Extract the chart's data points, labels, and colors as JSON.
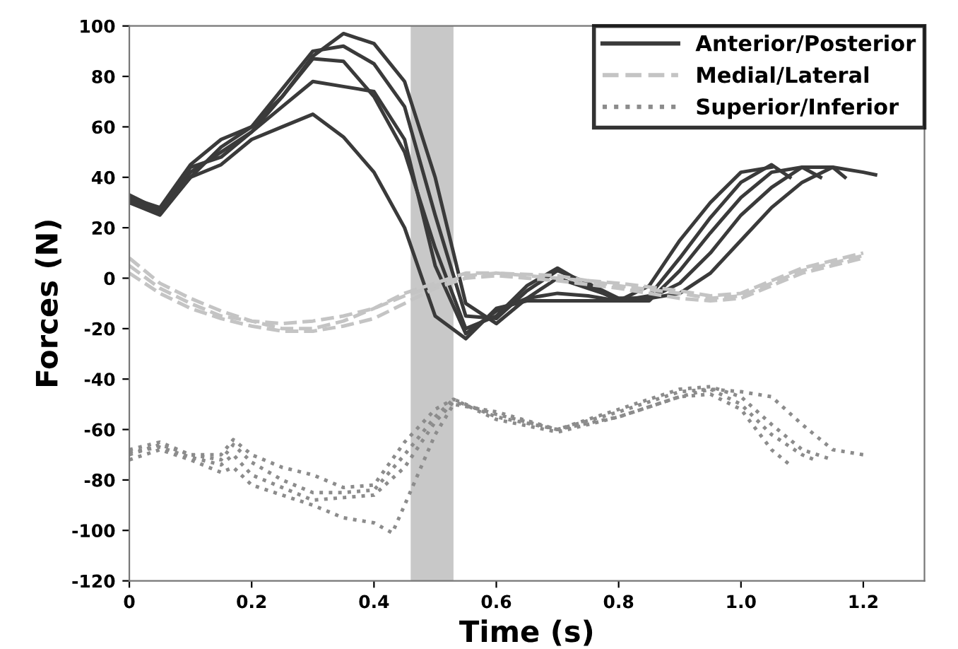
{
  "chart_data": {
    "type": "line",
    "xlabel": "Time (s)",
    "ylabel": "Forces (N)",
    "xlim": [
      0,
      1.3
    ],
    "xticks": [
      0,
      0.2,
      0.4,
      0.6,
      0.8,
      {
        "value": 1.0,
        "label": "1.0"
      },
      1.2
    ],
    "ylim": [
      -120,
      100
    ],
    "yticks": [
      -120,
      -100,
      -80,
      -60,
      -40,
      -20,
      0,
      20,
      40,
      60,
      80,
      100
    ],
    "grid": false,
    "legend": "top right",
    "marker": "none",
    "bands": [
      {
        "axis": "x",
        "from": 0.46,
        "to": 0.53,
        "color": "#c8c8c8"
      }
    ],
    "series": [
      {
        "name": "Anterior/Posterior",
        "color": "#3a3a3a",
        "line_style": "solid",
        "x": [
          0,
          0.05,
          0.1,
          0.15,
          0.2,
          0.25,
          0.3,
          0.35,
          0.4,
          0.45,
          0.5,
          0.55,
          0.6,
          0.65,
          0.7,
          0.75,
          0.8,
          0.85,
          0.9,
          0.95,
          1.0,
          1.05,
          1.1,
          1.15,
          1.2,
          1.22
        ],
        "values": [
          33,
          27,
          42,
          50,
          58,
          72,
          88,
          97,
          93,
          78,
          40,
          -10,
          -18,
          -8,
          0,
          -4,
          -8,
          -8,
          -6,
          2,
          15,
          28,
          38,
          44,
          42,
          41
        ]
      },
      {
        "color": "#3a3a3a",
        "line_style": "solid",
        "x": [
          0,
          0.05,
          0.1,
          0.15,
          0.2,
          0.25,
          0.3,
          0.35,
          0.4,
          0.45,
          0.5,
          0.55,
          0.6,
          0.65,
          0.7,
          0.75,
          0.8,
          0.85,
          0.9,
          0.95,
          1.0,
          1.05,
          1.1,
          1.15,
          1.17
        ],
        "values": [
          32,
          28,
          45,
          55,
          60,
          75,
          90,
          92,
          85,
          68,
          25,
          -15,
          -16,
          -5,
          3,
          -2,
          -8,
          -8,
          -2,
          10,
          25,
          36,
          44,
          44,
          40
        ]
      },
      {
        "color": "#3a3a3a",
        "line_style": "solid",
        "x": [
          0,
          0.05,
          0.1,
          0.15,
          0.2,
          0.25,
          0.3,
          0.35,
          0.4,
          0.45,
          0.5,
          0.55,
          0.6,
          0.65,
          0.7,
          0.75,
          0.8,
          0.85,
          0.9,
          0.95,
          1.0,
          1.05,
          1.1,
          1.13
        ],
        "values": [
          30,
          25,
          40,
          52,
          60,
          72,
          87,
          86,
          72,
          50,
          12,
          -20,
          -15,
          -3,
          4,
          -3,
          -9,
          -9,
          3,
          18,
          32,
          42,
          44,
          40
        ]
      },
      {
        "color": "#3a3a3a",
        "line_style": "solid",
        "x": [
          0,
          0.05,
          0.1,
          0.15,
          0.2,
          0.25,
          0.3,
          0.35,
          0.4,
          0.45,
          0.5,
          0.55,
          0.6,
          0.65,
          0.7,
          0.75,
          0.8,
          0.85,
          0.9,
          0.95,
          1.0,
          1.05,
          1.08
        ],
        "values": [
          31,
          27,
          44,
          48,
          58,
          68,
          78,
          76,
          74,
          55,
          5,
          -22,
          -13,
          -8,
          -6,
          -7,
          -9,
          -7,
          8,
          24,
          38,
          45,
          40
        ]
      },
      {
        "color": "#3a3a3a",
        "line_style": "solid",
        "x": [
          0,
          0.05,
          0.1,
          0.15,
          0.2,
          0.25,
          0.3,
          0.35,
          0.4,
          0.45,
          0.5,
          0.55,
          0.6,
          0.65,
          0.7,
          0.75,
          0.8,
          0.85,
          0.9,
          0.95,
          1.0,
          1.05
        ],
        "values": [
          30,
          26,
          40,
          45,
          55,
          60,
          65,
          56,
          42,
          20,
          -15,
          -24,
          -12,
          -9,
          -9,
          -9,
          -9,
          -3,
          15,
          30,
          42,
          44
        ]
      },
      {
        "name": "Medial/Lateral",
        "color": "#c4c4c4",
        "line_style": "dashed",
        "x": [
          0,
          0.05,
          0.1,
          0.15,
          0.2,
          0.25,
          0.3,
          0.35,
          0.4,
          0.45,
          0.5,
          0.55,
          0.6,
          0.7,
          0.8,
          0.9,
          0.95,
          1.0,
          1.1,
          1.2
        ],
        "values": [
          8,
          -2,
          -8,
          -13,
          -17,
          -20,
          -20,
          -17,
          -12,
          -6,
          -2,
          2,
          2,
          0,
          -2,
          -5,
          -7,
          -6,
          4,
          10
        ]
      },
      {
        "color": "#c4c4c4",
        "line_style": "dashed",
        "x": [
          0,
          0.05,
          0.1,
          0.15,
          0.2,
          0.25,
          0.3,
          0.35,
          0.4,
          0.45,
          0.5,
          0.55,
          0.6,
          0.7,
          0.8,
          0.9,
          0.95,
          1.0,
          1.1,
          1.2
        ],
        "values": [
          2,
          -6,
          -12,
          -16,
          -19,
          -21,
          -21,
          -19,
          -16,
          -10,
          -4,
          0,
          1,
          -1,
          -4,
          -8,
          -9,
          -8,
          2,
          8
        ]
      },
      {
        "color": "#c4c4c4",
        "line_style": "dashed",
        "x": [
          0,
          0.05,
          0.1,
          0.15,
          0.2,
          0.25,
          0.3,
          0.35,
          0.4,
          0.45,
          0.5,
          0.55,
          0.6,
          0.7,
          0.8,
          0.9,
          0.95,
          1.0,
          1.1,
          1.2
        ],
        "values": [
          5,
          -4,
          -10,
          -15,
          -17,
          -18,
          -17,
          -15,
          -12,
          -7,
          -3,
          1,
          2,
          1,
          -3,
          -6,
          -8,
          -7,
          3,
          9
        ]
      },
      {
        "name": "Superior/Inferior",
        "color": "#8c8c8c",
        "line_style": "dotted",
        "x": [
          0,
          0.05,
          0.1,
          0.15,
          0.17,
          0.2,
          0.25,
          0.3,
          0.35,
          0.4,
          0.45,
          0.5,
          0.53,
          0.6,
          0.7,
          0.8,
          0.9,
          0.95,
          1.0,
          1.05,
          1.1,
          1.15,
          1.2
        ],
        "values": [
          -68,
          -65,
          -70,
          -70,
          -64,
          -70,
          -75,
          -78,
          -83,
          -82,
          -65,
          -52,
          -48,
          -56,
          -61,
          -55,
          -47,
          -44,
          -45,
          -47,
          -58,
          -68,
          -70
        ]
      },
      {
        "color": "#8c8c8c",
        "line_style": "dotted",
        "x": [
          0,
          0.05,
          0.1,
          0.15,
          0.17,
          0.2,
          0.25,
          0.3,
          0.35,
          0.4,
          0.45,
          0.5,
          0.53,
          0.6,
          0.7,
          0.8,
          0.9,
          0.95,
          1.0,
          1.05,
          1.1,
          1.15
        ],
        "values": [
          -70,
          -66,
          -70,
          -72,
          -66,
          -73,
          -80,
          -85,
          -85,
          -84,
          -70,
          -55,
          -48,
          -55,
          -60,
          -52,
          -44,
          -43,
          -47,
          -58,
          -68,
          -72
        ]
      },
      {
        "color": "#8c8c8c",
        "line_style": "dotted",
        "x": [
          0,
          0.05,
          0.1,
          0.15,
          0.17,
          0.2,
          0.25,
          0.3,
          0.35,
          0.4,
          0.45,
          0.5,
          0.53,
          0.6,
          0.7,
          0.8,
          0.9,
          0.95,
          1.0,
          1.05,
          1.1,
          1.12
        ],
        "values": [
          -69,
          -67,
          -71,
          -74,
          -70,
          -78,
          -83,
          -88,
          -87,
          -86,
          -75,
          -57,
          -49,
          -54,
          -60,
          -53,
          -45,
          -44,
          -50,
          -62,
          -70,
          -72
        ]
      },
      {
        "color": "#8c8c8c",
        "line_style": "dotted",
        "x": [
          0,
          0.05,
          0.1,
          0.15,
          0.17,
          0.2,
          0.25,
          0.3,
          0.35,
          0.4,
          0.43,
          0.45,
          0.5,
          0.53,
          0.6,
          0.7,
          0.8,
          0.9,
          0.95,
          1.0,
          1.05,
          1.08
        ],
        "values": [
          -72,
          -68,
          -72,
          -77,
          -75,
          -82,
          -86,
          -90,
          -95,
          -97,
          -101,
          -90,
          -62,
          -50,
          -53,
          -60,
          -55,
          -47,
          -46,
          -52,
          -68,
          -74
        ]
      }
    ]
  }
}
